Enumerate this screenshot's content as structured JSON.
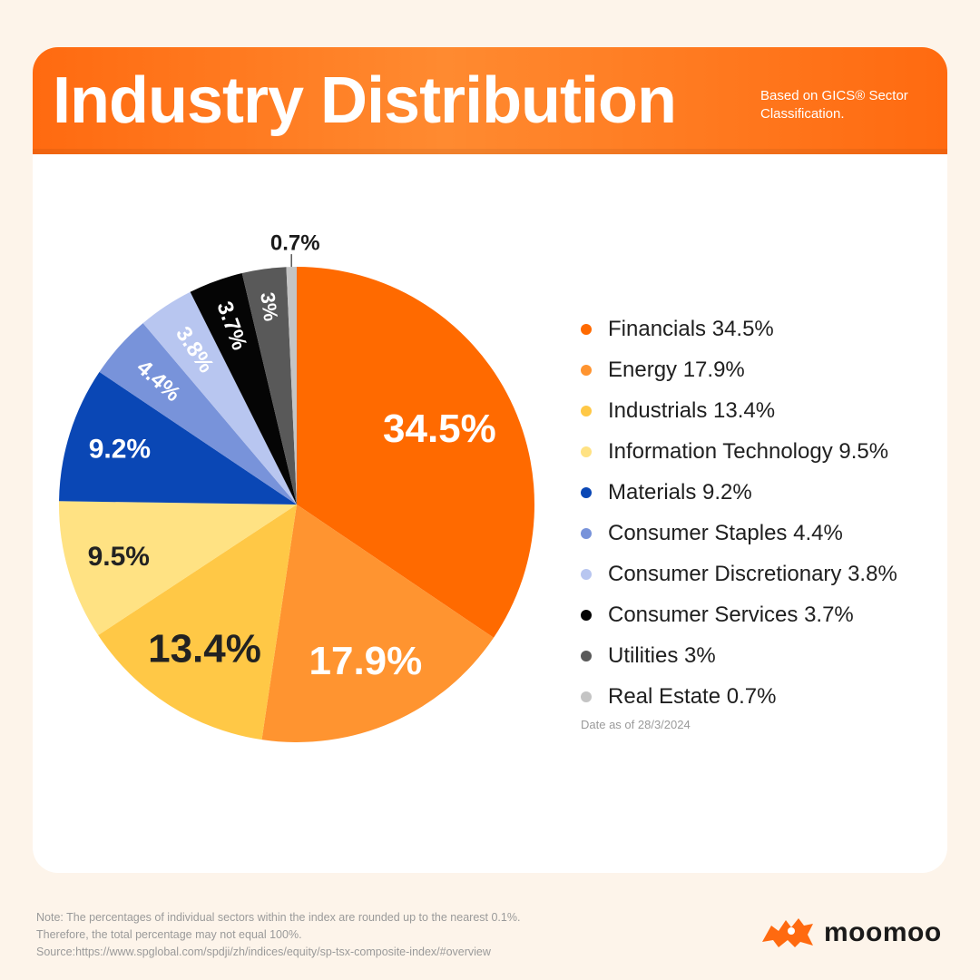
{
  "header": {
    "title": "Industry Distribution",
    "subtitle": "Based on GICS® Sector Classification."
  },
  "chart_data": {
    "type": "pie",
    "title": "Industry Distribution",
    "legend_position": "right",
    "slices": [
      {
        "name": "Financials",
        "value": 34.5,
        "label": "34.5%",
        "legend": "Financials 34.5%",
        "color": "#ff6a00"
      },
      {
        "name": "Energy",
        "value": 17.9,
        "label": "17.9%",
        "legend": "Energy 17.9%",
        "color": "#ff9430"
      },
      {
        "name": "Industrials",
        "value": 13.4,
        "label": "13.4%",
        "legend": "Industrials 13.4%",
        "color": "#ffc846"
      },
      {
        "name": "Information Technology",
        "value": 9.5,
        "label": "9.5%",
        "legend": "Information Technology 9.5%",
        "color": "#ffe283"
      },
      {
        "name": "Materials",
        "value": 9.2,
        "label": "9.2%",
        "legend": "Materials 9.2%",
        "color": "#0a47b5"
      },
      {
        "name": "Consumer Staples",
        "value": 4.4,
        "label": "4.4%",
        "legend": "Consumer Staples 4.4%",
        "color": "#7893da"
      },
      {
        "name": "Consumer Discretionary",
        "value": 3.8,
        "label": "3.8%",
        "legend": "Consumer Discretionary 3.8%",
        "color": "#b8c6f0"
      },
      {
        "name": "Consumer Services",
        "value": 3.7,
        "label": "3.7%",
        "legend": "Consumer Services 3.7%",
        "color": "#050505"
      },
      {
        "name": "Utilities",
        "value": 3,
        "label": "3%",
        "legend": "Utilities 3%",
        "color": "#595959"
      },
      {
        "name": "Real Estate",
        "value": 0.7,
        "label": "0.7%",
        "legend": "Real Estate 0.7%",
        "color": "#c4c4c4"
      }
    ]
  },
  "date_note": "Date as of 28/3/2024",
  "footer": {
    "note_line1": "Note: The percentages of individual sectors within the index are rounded up to the nearest 0.1%.",
    "note_line2": "Therefore, the total percentage may not equal 100%.",
    "source": "Source:https://www.spglobal.com/spdji/zh/indices/equity/sp-tsx-composite-index/#overview"
  },
  "brand": {
    "name": "moomoo",
    "logo_icon": "bull-logo-icon",
    "color": "#ff6a10"
  }
}
